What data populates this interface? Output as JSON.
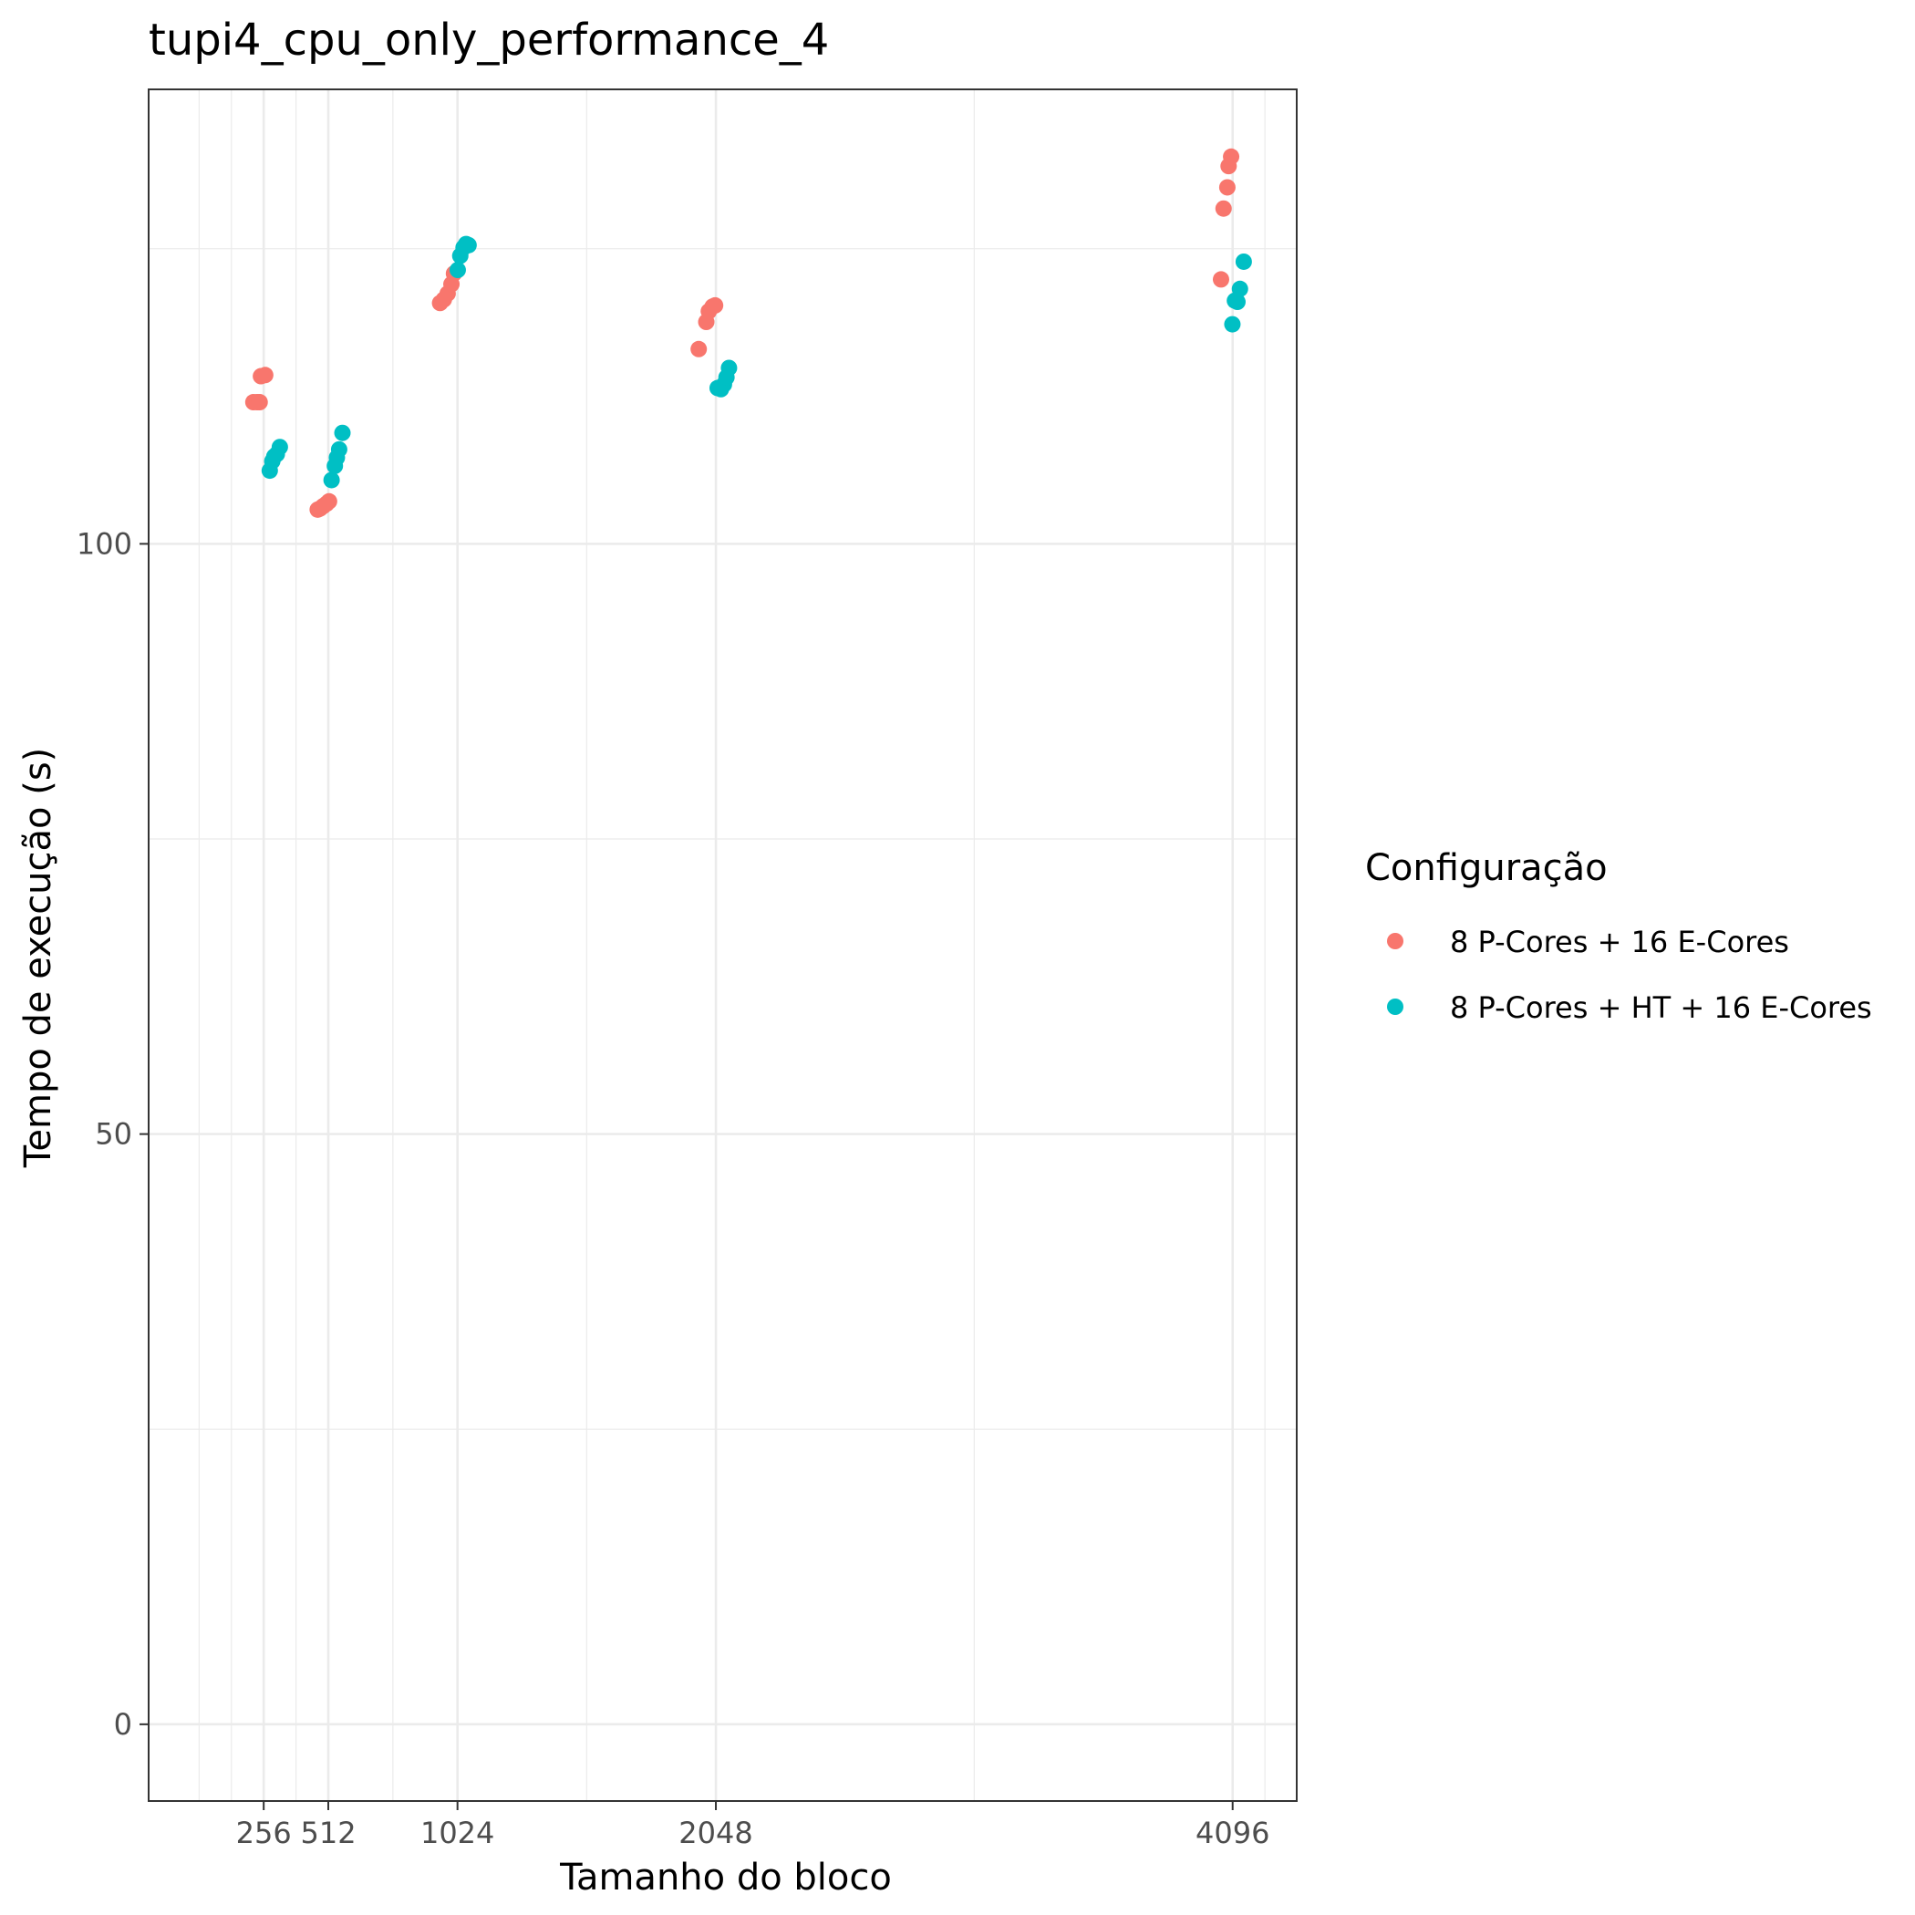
{
  "chart_data": {
    "type": "scatter",
    "title": "tupi4_cpu_only_performance_4",
    "xlabel": "Tamanho do bloco",
    "ylabel": "Tempo de execução (s)",
    "x_ticks": [
      256,
      512,
      1024,
      2048,
      4096
    ],
    "y_ticks": [
      0,
      50,
      100
    ],
    "xlim": [
      -200,
      4350
    ],
    "ylim": [
      -6.5,
      138.5
    ],
    "grid": true,
    "legend": {
      "title": "Configuração",
      "position": "right"
    },
    "series": [
      {
        "name": "8 P-Cores + 16 E-Cores",
        "color": "#F8766D",
        "points": [
          {
            "x": 215,
            "y": 112.0
          },
          {
            "x": 230,
            "y": 112.0
          },
          {
            "x": 240,
            "y": 112.0
          },
          {
            "x": 245,
            "y": 114.2
          },
          {
            "x": 262,
            "y": 114.3
          },
          {
            "x": 470,
            "y": 102.9
          },
          {
            "x": 480,
            "y": 103.0
          },
          {
            "x": 492,
            "y": 103.2
          },
          {
            "x": 505,
            "y": 103.4
          },
          {
            "x": 515,
            "y": 103.6
          },
          {
            "x": 955,
            "y": 120.4
          },
          {
            "x": 970,
            "y": 120.7
          },
          {
            "x": 985,
            "y": 121.2
          },
          {
            "x": 1000,
            "y": 122.0
          },
          {
            "x": 1010,
            "y": 122.9
          },
          {
            "x": 1980,
            "y": 116.5
          },
          {
            "x": 2010,
            "y": 118.8
          },
          {
            "x": 2020,
            "y": 119.7
          },
          {
            "x": 2035,
            "y": 120.1
          },
          {
            "x": 2045,
            "y": 120.2
          },
          {
            "x": 4050,
            "y": 122.4
          },
          {
            "x": 4060,
            "y": 128.4
          },
          {
            "x": 4075,
            "y": 130.2
          },
          {
            "x": 4080,
            "y": 132.0
          },
          {
            "x": 4090,
            "y": 132.8
          }
        ]
      },
      {
        "name": "8 P-Cores + HT + 16 E-Cores",
        "color": "#00BFC4",
        "points": [
          {
            "x": 280,
            "y": 106.2
          },
          {
            "x": 290,
            "y": 107.0
          },
          {
            "x": 298,
            "y": 107.4
          },
          {
            "x": 308,
            "y": 107.6
          },
          {
            "x": 320,
            "y": 108.2
          },
          {
            "x": 525,
            "y": 105.4
          },
          {
            "x": 538,
            "y": 106.6
          },
          {
            "x": 546,
            "y": 107.3
          },
          {
            "x": 555,
            "y": 108.0
          },
          {
            "x": 568,
            "y": 109.4
          },
          {
            "x": 1025,
            "y": 123.2
          },
          {
            "x": 1035,
            "y": 124.4
          },
          {
            "x": 1048,
            "y": 125.1
          },
          {
            "x": 1058,
            "y": 125.4
          },
          {
            "x": 1068,
            "y": 125.3
          },
          {
            "x": 2055,
            "y": 113.2
          },
          {
            "x": 2068,
            "y": 113.1
          },
          {
            "x": 2080,
            "y": 113.5
          },
          {
            "x": 2090,
            "y": 114.1
          },
          {
            "x": 2100,
            "y": 114.9
          },
          {
            "x": 4095,
            "y": 118.6
          },
          {
            "x": 4105,
            "y": 120.6
          },
          {
            "x": 4115,
            "y": 120.5
          },
          {
            "x": 4125,
            "y": 121.6
          },
          {
            "x": 4140,
            "y": 123.9
          }
        ]
      }
    ]
  }
}
